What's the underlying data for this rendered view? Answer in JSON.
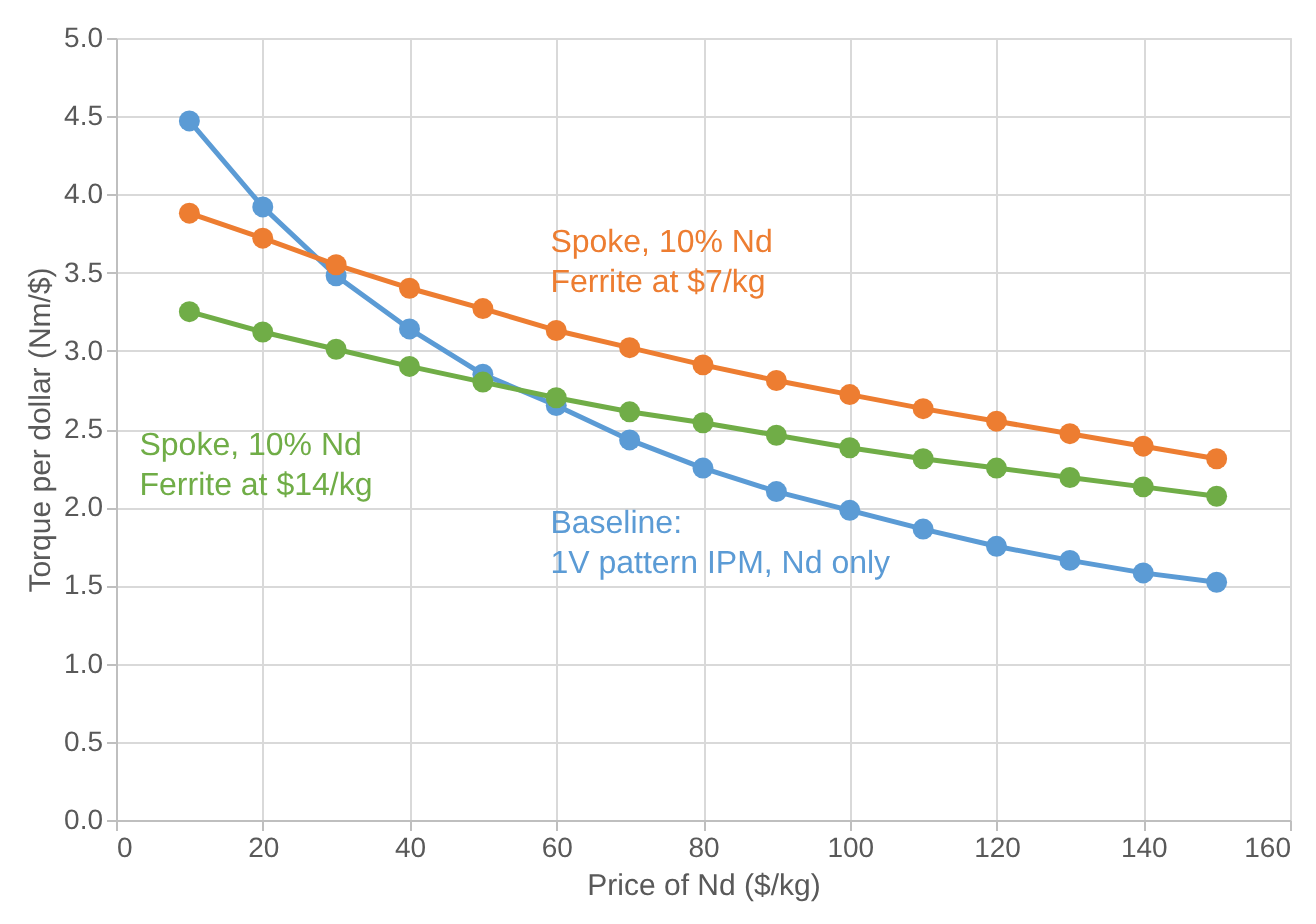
{
  "chart_data": {
    "type": "line",
    "xlabel": "Price of Nd ($/kg)",
    "ylabel": "Torque per dollar (Nm/$)",
    "x": [
      10,
      20,
      30,
      40,
      50,
      60,
      70,
      80,
      90,
      100,
      110,
      120,
      130,
      140,
      150
    ],
    "series": [
      {
        "name": "Baseline:\n1V pattern IPM, Nd only",
        "color": "#5b9bd5",
        "values": [
          4.47,
          3.92,
          3.48,
          3.14,
          2.85,
          2.65,
          2.43,
          2.25,
          2.1,
          1.98,
          1.86,
          1.75,
          1.66,
          1.58,
          1.52
        ]
      },
      {
        "name": "Spoke, 10% Nd\nFerrite at $7/kg",
        "color": "#ed7d31",
        "values": [
          3.88,
          3.72,
          3.55,
          3.4,
          3.27,
          3.13,
          3.02,
          2.91,
          2.81,
          2.72,
          2.63,
          2.55,
          2.47,
          2.39,
          2.31
        ]
      },
      {
        "name": "Spoke, 10% Nd\nFerrite at $14/kg",
        "color": "#70ad47",
        "values": [
          3.25,
          3.12,
          3.01,
          2.9,
          2.8,
          2.7,
          2.61,
          2.54,
          2.46,
          2.38,
          2.31,
          2.25,
          2.19,
          2.13,
          2.07
        ]
      }
    ],
    "xlim": [
      0,
      160
    ],
    "xticks": [
      0,
      20,
      40,
      60,
      80,
      100,
      120,
      140,
      160
    ],
    "ylim": [
      0,
      5
    ],
    "yticks": [
      {
        "value": 0,
        "label": "0.0"
      },
      0.5,
      {
        "value": 1,
        "label": "1.0"
      },
      1.5,
      {
        "value": 2,
        "label": "2.0"
      },
      2.5,
      {
        "value": 3,
        "label": "3.0"
      },
      3.5,
      {
        "value": 4,
        "label": "4.0"
      },
      4.5,
      {
        "value": 5,
        "label": "5.0"
      }
    ],
    "grid": true,
    "marker": "circle",
    "line_style": "solid"
  }
}
